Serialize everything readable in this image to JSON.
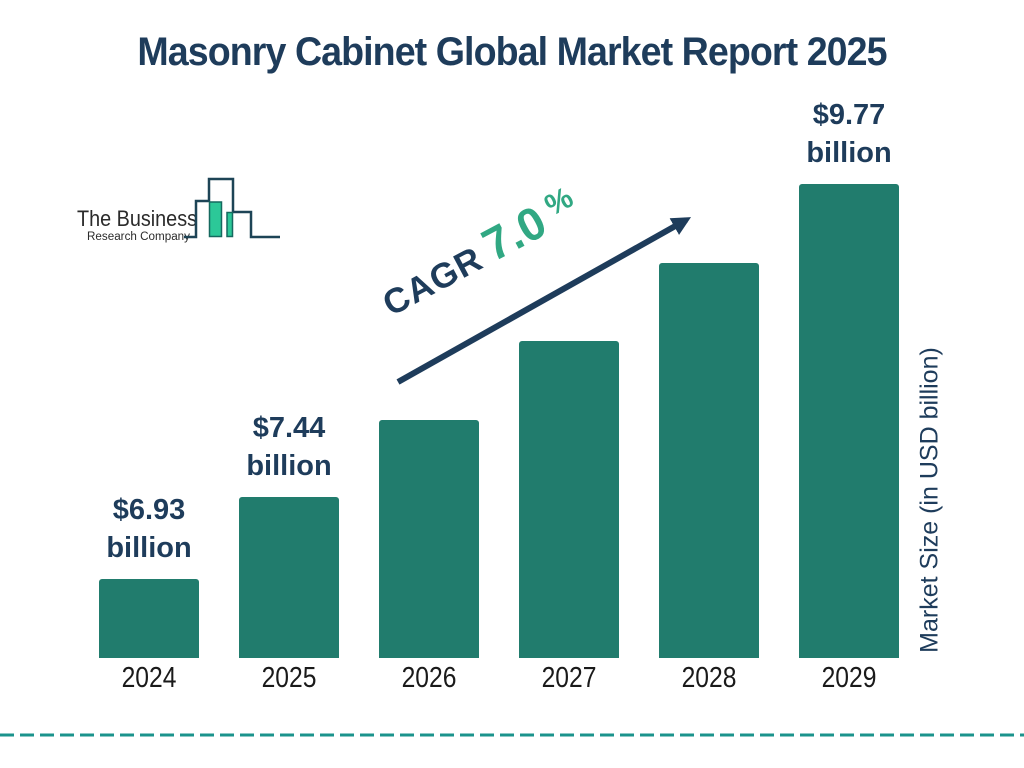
{
  "header": {
    "title": "Masonry Cabinet Global Market Report 2025"
  },
  "logo": {
    "line1": "The Business",
    "line2": "Research Company"
  },
  "annotation": {
    "cagr_label": "CAGR",
    "cagr_value": "7.0",
    "cagr_unit": "%"
  },
  "axis": {
    "y_label": "Market Size (in USD billion)"
  },
  "chart_data": {
    "type": "bar",
    "title": "Masonry Cabinet Global Market Report 2025",
    "xlabel": "",
    "ylabel": "Market Size (in USD billion)",
    "unit": "USD billion",
    "categories": [
      "2024",
      "2025",
      "2026",
      "2027",
      "2028",
      "2029"
    ],
    "values": [
      6.93,
      7.44,
      7.96,
      8.52,
      9.12,
      9.77
    ],
    "estimated_indices": [
      2,
      3,
      4
    ],
    "value_labels": [
      "$6.93 billion",
      "$7.44 billion",
      null,
      null,
      null,
      "$9.77 billion"
    ],
    "cagr": "CAGR 7.0%",
    "legend_position": "none",
    "grid": false
  },
  "colors": {
    "bar": "#217c6d",
    "navy": "#1e3c5b",
    "green": "#31a883",
    "dash": "#1b938c",
    "logo_fill": "#2cc898",
    "logo_fill_stroke": "#15695f",
    "logo_stroke": "#1d4456",
    "year_text": "#1a1a1a",
    "logo_text": "#2b2b2b"
  }
}
